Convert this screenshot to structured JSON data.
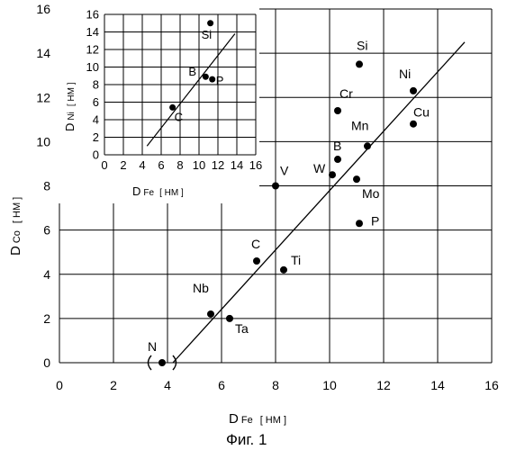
{
  "figure_caption": "Фиг. 1",
  "chart_data": [
    {
      "type": "scatter",
      "xlabel_main": "D",
      "xlabel_sub": "Fe",
      "xlabel_unit": "[ НМ ]",
      "ylabel_main": "D",
      "ylabel_sub": "Co",
      "ylabel_unit": "[ НМ ]",
      "xlim": [
        0,
        16
      ],
      "ylim": [
        0,
        16
      ],
      "xticks": [
        0,
        2,
        4,
        6,
        8,
        10,
        12,
        14,
        16
      ],
      "yticks": [
        0,
        2,
        4,
        6,
        8,
        10,
        12,
        14,
        16
      ],
      "xtick_labels": [
        "0",
        "2",
        "4",
        "6",
        "8",
        "10",
        "12",
        "14",
        "16"
      ],
      "ytick_labels": [
        "0",
        "2",
        "4",
        "6",
        "8",
        "10",
        "12",
        "14",
        "16"
      ],
      "grid": true,
      "points": [
        {
          "label": "N",
          "x": 3.8,
          "y": 0.0,
          "bracketed": true
        },
        {
          "label": "Nb",
          "x": 5.6,
          "y": 2.2
        },
        {
          "label": "Ta",
          "x": 6.3,
          "y": 2.0
        },
        {
          "label": "C",
          "x": 7.3,
          "y": 4.6
        },
        {
          "label": "Ti",
          "x": 8.3,
          "y": 4.2
        },
        {
          "label": "V",
          "x": 8.0,
          "y": 8.0
        },
        {
          "label": "W",
          "x": 10.1,
          "y": 8.5
        },
        {
          "label": "B",
          "x": 10.3,
          "y": 9.2
        },
        {
          "label": "Mo",
          "x": 11.0,
          "y": 8.3
        },
        {
          "label": "P",
          "x": 11.1,
          "y": 6.3
        },
        {
          "label": "Mn",
          "x": 11.4,
          "y": 9.8
        },
        {
          "label": "Cr",
          "x": 10.3,
          "y": 11.4
        },
        {
          "label": "Si",
          "x": 11.1,
          "y": 13.5
        },
        {
          "label": "Ni",
          "x": 13.1,
          "y": 12.3
        },
        {
          "label": "Cu",
          "x": 13.1,
          "y": 10.8
        }
      ],
      "fit_line": [
        [
          4.2,
          0.0
        ],
        [
          15.0,
          14.5
        ]
      ]
    },
    {
      "type": "scatter",
      "xlabel_main": "D",
      "xlabel_sub": "Fe",
      "xlabel_unit": "[ НМ ]",
      "ylabel_main": "D",
      "ylabel_sub": "Ni",
      "ylabel_unit": "[ НМ ]",
      "xlim": [
        0,
        16
      ],
      "ylim": [
        0,
        16
      ],
      "xticks": [
        0,
        2,
        4,
        6,
        8,
        10,
        12,
        14,
        16
      ],
      "yticks": [
        0,
        2,
        4,
        6,
        8,
        10,
        12,
        14,
        16
      ],
      "xtick_labels": [
        "0",
        "2",
        "4",
        "6",
        "8",
        "10",
        "12",
        "14",
        "16"
      ],
      "ytick_labels": [
        "0",
        "2",
        "4",
        "6",
        "8",
        "10",
        "12",
        "14",
        "16"
      ],
      "grid": true,
      "points": [
        {
          "label": "Si",
          "x": 11.2,
          "y": 15.0
        },
        {
          "label": "B",
          "x": 10.7,
          "y": 8.9
        },
        {
          "label": "P",
          "x": 11.4,
          "y": 8.6
        },
        {
          "label": "C",
          "x": 7.2,
          "y": 5.4
        }
      ],
      "fit_line": [
        [
          4.5,
          1.0
        ],
        [
          13.8,
          13.8
        ]
      ]
    }
  ]
}
